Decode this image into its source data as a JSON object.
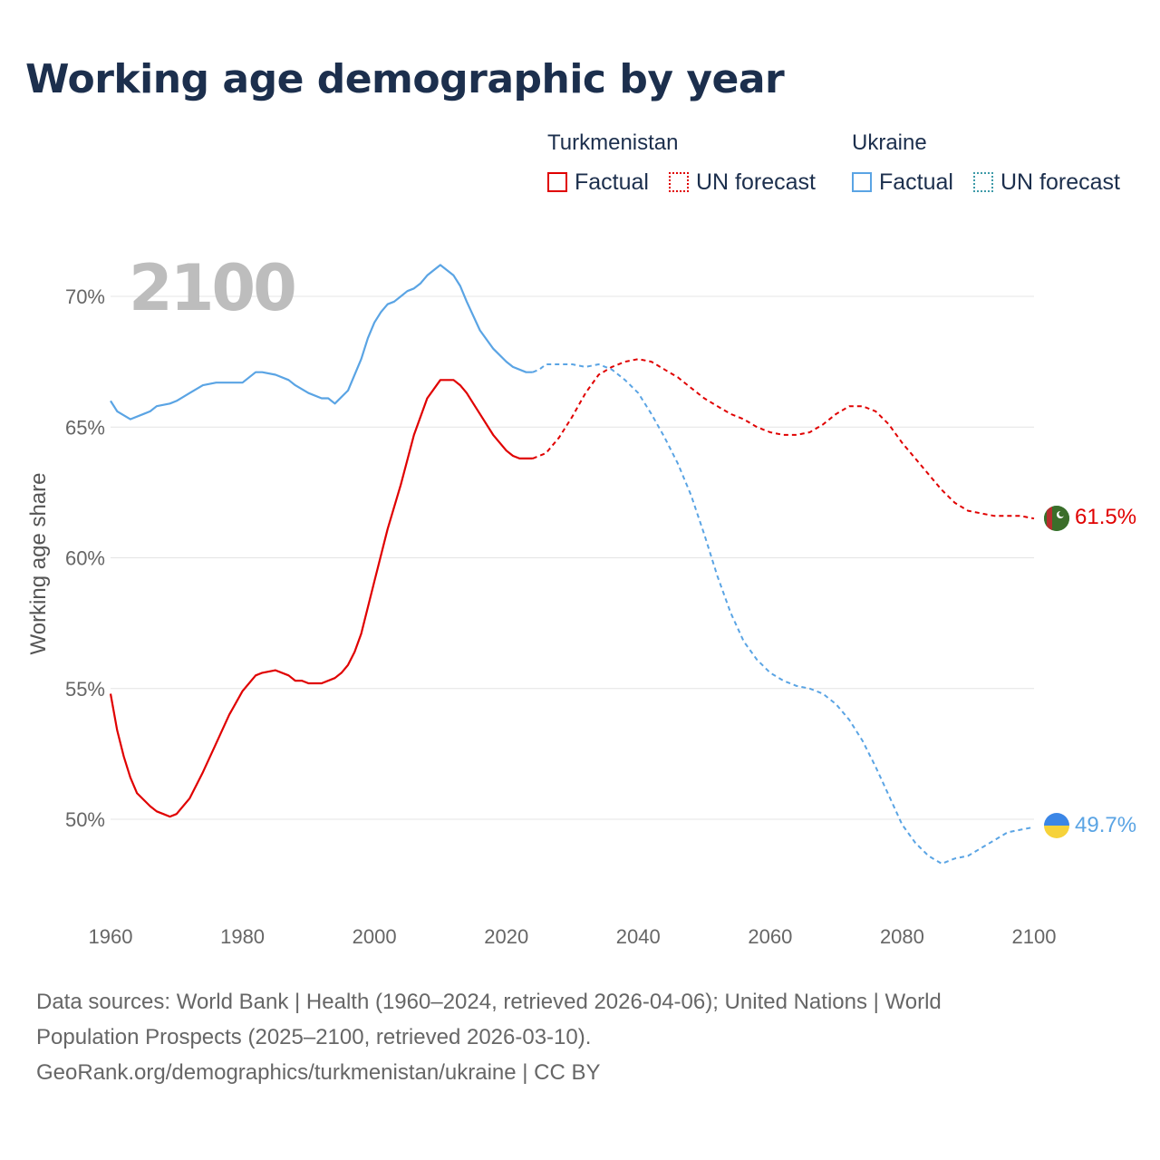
{
  "title": "Working age demographic by year",
  "legend": {
    "groups": [
      {
        "name": "Turkmenistan",
        "color": "#e00000",
        "factual_label": "Factual",
        "forecast_label": "UN forecast"
      },
      {
        "name": "Ukraine",
        "color": "#5aa4e4",
        "factual_label": "Factual",
        "forecast_label": "UN forecast"
      }
    ]
  },
  "year_watermark": "2100",
  "sources": {
    "line1": "Data sources: World Bank | Health (1960–2024, retrieved 2026-04-06); United Nations | World",
    "line2": "Population Prospects (2025–2100, retrieved 2026-03-10).",
    "line3": "GeoRank.org/demographics/turkmenistan/ukraine | CC BY"
  },
  "chart_data": {
    "type": "line",
    "title": "Working age demographic by year",
    "xlabel": "",
    "ylabel": "Working age share",
    "xlim": [
      1960,
      2100
    ],
    "ylim": [
      46.5,
      72
    ],
    "x_ticks": [
      1960,
      1980,
      2000,
      2020,
      2040,
      2060,
      2080,
      2100
    ],
    "x_tick_labels": [
      "1960",
      "1980",
      "2000",
      "2020",
      "2040",
      "2060",
      "2080",
      "2100"
    ],
    "y_ticks": [
      50,
      55,
      60,
      65,
      70
    ],
    "y_tick_labels": [
      "50%",
      "55%",
      "60%",
      "65%",
      "70%"
    ],
    "grid": true,
    "series": [
      {
        "name": "Turkmenistan",
        "color": "#e00000",
        "end_label": "61.5%",
        "factual": {
          "x": [
            1960,
            1961,
            1962,
            1963,
            1964,
            1966,
            1967,
            1968,
            1969,
            1970,
            1972,
            1974,
            1976,
            1978,
            1980,
            1982,
            1983,
            1985,
            1987,
            1988,
            1989,
            1990,
            1992,
            1994,
            1995,
            1996,
            1997,
            1998,
            2000,
            2002,
            2004,
            2006,
            2008,
            2010,
            2011,
            2012,
            2013,
            2014,
            2015,
            2016,
            2018,
            2020,
            2021,
            2022,
            2023,
            2024
          ],
          "y": [
            54.8,
            53.4,
            52.4,
            51.6,
            51.0,
            50.5,
            50.3,
            50.2,
            50.1,
            50.2,
            50.8,
            51.8,
            52.9,
            54.0,
            54.9,
            55.5,
            55.6,
            55.7,
            55.5,
            55.3,
            55.3,
            55.2,
            55.2,
            55.4,
            55.6,
            55.9,
            56.4,
            57.1,
            59.1,
            61.1,
            62.8,
            64.7,
            66.1,
            66.8,
            66.8,
            66.8,
            66.6,
            66.3,
            65.9,
            65.5,
            64.7,
            64.1,
            63.9,
            63.8,
            63.8,
            63.8
          ]
        },
        "forecast": {
          "x": [
            2024,
            2026,
            2028,
            2030,
            2032,
            2034,
            2036,
            2038,
            2040,
            2042,
            2044,
            2046,
            2048,
            2050,
            2052,
            2054,
            2056,
            2058,
            2060,
            2062,
            2064,
            2066,
            2068,
            2070,
            2072,
            2074,
            2076,
            2078,
            2080,
            2082,
            2084,
            2086,
            2088,
            2090,
            2092,
            2094,
            2096,
            2098,
            2100
          ],
          "y": [
            63.8,
            64.0,
            64.6,
            65.4,
            66.3,
            67.0,
            67.3,
            67.5,
            67.6,
            67.5,
            67.2,
            66.9,
            66.5,
            66.1,
            65.8,
            65.5,
            65.3,
            65.0,
            64.8,
            64.7,
            64.7,
            64.8,
            65.1,
            65.5,
            65.8,
            65.8,
            65.6,
            65.1,
            64.4,
            63.8,
            63.2,
            62.6,
            62.1,
            61.8,
            61.7,
            61.6,
            61.6,
            61.6,
            61.5
          ]
        }
      },
      {
        "name": "Ukraine",
        "color": "#5aa4e4",
        "end_label": "49.7%",
        "factual": {
          "x": [
            1960,
            1961,
            1963,
            1965,
            1966,
            1967,
            1969,
            1970,
            1972,
            1974,
            1976,
            1978,
            1980,
            1982,
            1983,
            1985,
            1987,
            1988,
            1990,
            1992,
            1993,
            1994,
            1996,
            1998,
            1999,
            2000,
            2001,
            2002,
            2003,
            2004,
            2005,
            2006,
            2007,
            2008,
            2009,
            2010,
            2011,
            2012,
            2013,
            2014,
            2016,
            2018,
            2020,
            2021,
            2023,
            2024
          ],
          "y": [
            66.0,
            65.6,
            65.3,
            65.5,
            65.6,
            65.8,
            65.9,
            66.0,
            66.3,
            66.6,
            66.7,
            66.7,
            66.7,
            67.1,
            67.1,
            67.0,
            66.8,
            66.6,
            66.3,
            66.1,
            66.1,
            65.9,
            66.4,
            67.6,
            68.4,
            69.0,
            69.4,
            69.7,
            69.8,
            70.0,
            70.2,
            70.3,
            70.5,
            70.8,
            71.0,
            71.2,
            71.0,
            70.8,
            70.4,
            69.8,
            68.7,
            68.0,
            67.5,
            67.3,
            67.1,
            67.1
          ]
        },
        "forecast": {
          "x": [
            2024,
            2025,
            2026,
            2028,
            2030,
            2032,
            2034,
            2036,
            2038,
            2040,
            2042,
            2044,
            2046,
            2048,
            2050,
            2052,
            2054,
            2056,
            2058,
            2060,
            2062,
            2064,
            2066,
            2068,
            2070,
            2072,
            2074,
            2076,
            2078,
            2080,
            2082,
            2084,
            2086,
            2088,
            2090,
            2092,
            2094,
            2096,
            2098,
            2100
          ],
          "y": [
            67.1,
            67.2,
            67.4,
            67.4,
            67.4,
            67.3,
            67.4,
            67.2,
            66.8,
            66.3,
            65.5,
            64.6,
            63.6,
            62.4,
            60.9,
            59.3,
            57.9,
            56.8,
            56.1,
            55.6,
            55.3,
            55.1,
            55.0,
            54.8,
            54.4,
            53.8,
            53.0,
            52.0,
            50.9,
            49.8,
            49.1,
            48.6,
            48.3,
            48.5,
            48.6,
            48.9,
            49.2,
            49.5,
            49.6,
            49.7
          ]
        }
      }
    ]
  }
}
